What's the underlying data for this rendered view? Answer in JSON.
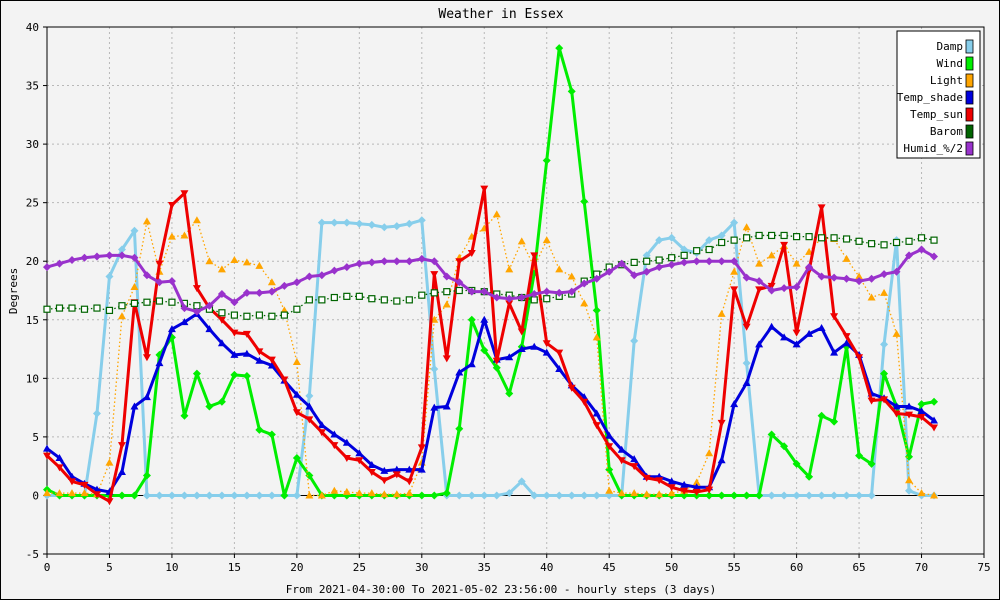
{
  "chart_data": {
    "type": "line",
    "title": "Weather in Essex",
    "ylabel": "Degrees",
    "xlabel": "From 2021-04-30:00 To 2021-05-02 23:56:00 - hourly steps (3 days)",
    "xlim": [
      0,
      75
    ],
    "ylim": [
      -5,
      40
    ],
    "x_ticks": [
      "0",
      "5",
      "10",
      "15",
      "20",
      "25",
      "30",
      "35",
      "40",
      "45",
      "50",
      "55",
      "60",
      "65",
      "70",
      "75"
    ],
    "y_ticks": [
      "-5",
      "0",
      "5",
      "10",
      "15",
      "20",
      "25",
      "30",
      "35",
      "40"
    ],
    "grid": true,
    "legend_position": "top-right",
    "x": [
      0,
      1,
      2,
      3,
      4,
      5,
      6,
      7,
      8,
      9,
      10,
      11,
      12,
      13,
      14,
      15,
      16,
      17,
      18,
      19,
      20,
      21,
      22,
      23,
      24,
      25,
      26,
      27,
      28,
      29,
      30,
      31,
      32,
      33,
      34,
      35,
      36,
      37,
      38,
      39,
      40,
      41,
      42,
      43,
      44,
      45,
      46,
      47,
      48,
      49,
      50,
      51,
      52,
      53,
      54,
      55,
      56,
      57,
      58,
      59,
      60,
      61,
      62,
      63,
      64,
      65,
      66,
      67,
      68,
      69,
      70,
      71
    ],
    "series": [
      {
        "name": "Damp",
        "color": "#87ceeb",
        "style": "solid",
        "marker": "diamond",
        "values": [
          0,
          0,
          0,
          0,
          7,
          18.7,
          21,
          22.6,
          0,
          0,
          0,
          0,
          0,
          0,
          0,
          0,
          0,
          0,
          0,
          0,
          0,
          8.5,
          23.3,
          23.3,
          23.3,
          23.2,
          23.1,
          22.9,
          23,
          23.2,
          23.5,
          10.8,
          0,
          0,
          0,
          0,
          0,
          0.2,
          1.2,
          0,
          0,
          0,
          0,
          0,
          0,
          0,
          0,
          13.2,
          20.5,
          21.8,
          22,
          21,
          20.7,
          21.8,
          22.2,
          23.3,
          11.3,
          0,
          0,
          0,
          0,
          0,
          0,
          0,
          0,
          0,
          0,
          12.9,
          21.8,
          0.4,
          0,
          0
        ]
      },
      {
        "name": "Wind",
        "color": "#00ee00",
        "style": "solid",
        "marker": "diamond",
        "values": [
          0.5,
          0,
          0,
          0,
          0,
          0,
          0,
          0,
          1.7,
          12,
          13.5,
          6.8,
          10.4,
          7.6,
          8,
          10.3,
          10.2,
          5.6,
          5.2,
          0,
          3.2,
          1.7,
          0,
          0,
          0,
          0,
          0,
          0,
          0,
          0,
          0,
          0,
          0.2,
          5.7,
          15,
          12.4,
          10.9,
          8.7,
          12.7,
          19,
          28.6,
          38.2,
          34.5,
          25.1,
          15.8,
          2.2,
          0,
          0,
          0,
          0,
          0,
          0,
          0,
          0,
          0,
          0,
          0,
          0,
          5.2,
          4.2,
          2.7,
          1.6,
          6.8,
          6.3,
          12.7,
          3.4,
          2.7,
          10.4,
          7.6,
          3.3,
          7.8,
          8
        ]
      },
      {
        "name": "Light",
        "color": "#ffa500",
        "style": "dotted",
        "marker": "triangle",
        "values": [
          0.2,
          0.2,
          0.2,
          0.2,
          0.1,
          2.8,
          15.3,
          17.8,
          23.4,
          19.1,
          22.1,
          22.2,
          23.5,
          20,
          19.3,
          20.1,
          19.9,
          19.6,
          18.2,
          15.8,
          11.4,
          0,
          0,
          0.4,
          0.3,
          0.2,
          0.2,
          0.1,
          0.1,
          0.2,
          2.8,
          15,
          16.3,
          20.3,
          22.1,
          22.8,
          24,
          19.3,
          21.7,
          19.5,
          21.8,
          19.3,
          18.7,
          16.4,
          13.5,
          0.4,
          0.2,
          0.2,
          0.1,
          0.1,
          0.2,
          0.4,
          1.1,
          3.6,
          15.5,
          19.1,
          22.9,
          19.8,
          20.5,
          21.3,
          19.8,
          20.8,
          22,
          21.9,
          20.2,
          18.7,
          16.9,
          17.3,
          13.8,
          1.3,
          0.2,
          0
        ]
      },
      {
        "name": "Temp_shade",
        "color": "#0000dd",
        "style": "solid",
        "marker": "triangle",
        "values": [
          4,
          3.2,
          1.6,
          1,
          0.5,
          0.3,
          2,
          7.6,
          8.4,
          11.3,
          14.2,
          14.8,
          15.5,
          14.2,
          13,
          12,
          12.1,
          11.5,
          11.1,
          9.8,
          8.6,
          7.6,
          6,
          5.2,
          4.5,
          3.6,
          2.6,
          2.1,
          2.2,
          2.2,
          2.2,
          7.5,
          7.6,
          10.5,
          11.2,
          15,
          11.6,
          11.8,
          12.5,
          12.7,
          12.2,
          10.8,
          9.4,
          8.4,
          7,
          5.1,
          3.9,
          3.1,
          1.6,
          1.6,
          1.2,
          0.9,
          0.7,
          0.7,
          3,
          7.8,
          9.6,
          12.9,
          14.4,
          13.5,
          12.9,
          13.8,
          14.3,
          12.2,
          13,
          12,
          8.7,
          8.3,
          7.6,
          7.6,
          7.2,
          6.4
        ]
      },
      {
        "name": "Temp_sun",
        "color": "#ee0000",
        "style": "solid",
        "marker": "triangle_down",
        "values": [
          3.4,
          2.4,
          1.2,
          0.9,
          0.1,
          -0.5,
          4.3,
          16.5,
          11.8,
          19.8,
          24.8,
          25.8,
          17.7,
          16,
          15,
          13.9,
          13.8,
          12.3,
          11.6,
          9.9,
          7.1,
          6.5,
          5.4,
          4.3,
          3.2,
          3,
          2,
          1.3,
          1.8,
          1.2,
          4.1,
          18.9,
          11.7,
          20,
          20.7,
          26.2,
          11.5,
          16.4,
          14,
          20.5,
          13,
          12.2,
          9.2,
          8,
          6,
          4.2,
          3,
          2.5,
          1.5,
          1.3,
          0.7,
          0.4,
          0.3,
          0.5,
          6.2,
          17.6,
          14.4,
          17.6,
          17.9,
          21.4,
          13.9,
          19.2,
          24.6,
          15.3,
          13.6,
          11.8,
          8.1,
          8.2,
          7,
          6.9,
          6.7,
          5.8
        ]
      },
      {
        "name": "Barom",
        "color": "#006400",
        "style": "dotted",
        "marker": "square",
        "values": [
          15.9,
          16,
          16,
          15.9,
          16,
          15.8,
          16.2,
          16.4,
          16.5,
          16.6,
          16.5,
          16.4,
          16.2,
          15.9,
          15.6,
          15.4,
          15.3,
          15.4,
          15.3,
          15.4,
          15.9,
          16.7,
          16.7,
          16.9,
          17,
          17,
          16.8,
          16.7,
          16.6,
          16.7,
          17.1,
          17.3,
          17.4,
          17.5,
          17.5,
          17.4,
          17.2,
          17.1,
          16.9,
          16.7,
          16.8,
          17,
          17.2,
          18.3,
          18.9,
          19.5,
          19.7,
          19.9,
          20,
          20.1,
          20.3,
          20.5,
          20.9,
          21,
          21.6,
          21.8,
          22,
          22.2,
          22.2,
          22.2,
          22.1,
          22.1,
          22,
          22,
          21.9,
          21.7,
          21.5,
          21.4,
          21.6,
          21.7,
          22,
          21.8
        ]
      },
      {
        "name": "Humid_%/2",
        "color": "#9932cc",
        "style": "solid",
        "marker": "diamond",
        "values": [
          19.5,
          19.8,
          20.1,
          20.3,
          20.4,
          20.5,
          20.5,
          20.3,
          18.8,
          18.2,
          18.3,
          16,
          15.7,
          16.2,
          17.2,
          16.5,
          17.3,
          17.3,
          17.4,
          17.9,
          18.2,
          18.7,
          18.8,
          19.2,
          19.5,
          19.8,
          19.9,
          20,
          20,
          20,
          20.2,
          20,
          18.7,
          18.2,
          17.4,
          17.4,
          16.9,
          16.8,
          16.9,
          17.2,
          17.4,
          17.3,
          17.4,
          18.1,
          18.5,
          19.1,
          19.8,
          18.8,
          19.1,
          19.5,
          19.7,
          19.9,
          20,
          20,
          20,
          20,
          18.6,
          18.3,
          17.5,
          17.7,
          17.8,
          19.5,
          18.7,
          18.6,
          18.5,
          18.3,
          18.5,
          18.9,
          19.1,
          20.5,
          21,
          20.4
        ]
      }
    ]
  }
}
